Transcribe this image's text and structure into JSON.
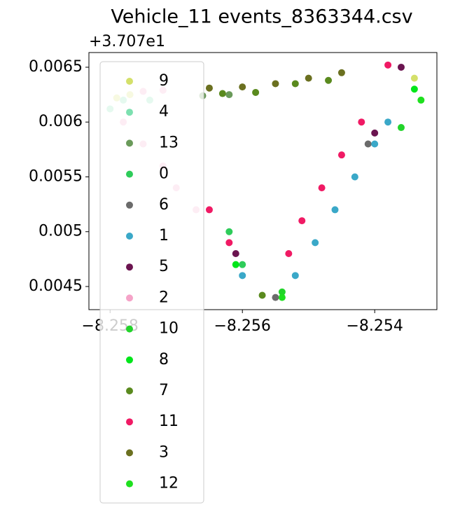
{
  "chart_data": {
    "type": "scatter",
    "title": "Vehicle_11 events_8363344.csv",
    "y_offset_text": "+3.707e1",
    "xlim": [
      -8.25832,
      -8.25306
    ],
    "ylim": [
      0.004289,
      0.006634
    ],
    "xticks": [
      {
        "value": -8.258,
        "label": "−8.258"
      },
      {
        "value": -8.256,
        "label": "−8.256"
      },
      {
        "value": -8.254,
        "label": "−8.254"
      }
    ],
    "yticks": [
      0.0045,
      0.005,
      0.0055,
      0.006,
      0.0065
    ],
    "legend": "upper left",
    "series": [
      {
        "name": "9",
        "color": "#d4e06a",
        "x": [
          -8.2579,
          -8.2577,
          -8.2534
        ],
        "y": [
          0.00622,
          0.00625,
          0.0064
        ]
      },
      {
        "name": "4",
        "color": "#7de0b0",
        "x": [
          -8.2578,
          -8.258,
          -8.2574
        ],
        "y": [
          0.0062,
          0.00612,
          0.0062
        ]
      },
      {
        "name": "13",
        "color": "#6a9a5a",
        "x": [
          -8.2566,
          -8.2562
        ],
        "y": [
          0.00624,
          0.00625
        ]
      },
      {
        "name": "0",
        "color": "#2ecc5a",
        "x": [
          -8.2562,
          -8.256
        ],
        "y": [
          0.005,
          0.0047
        ]
      },
      {
        "name": "6",
        "color": "#6b6b6b",
        "x": [
          -8.2555,
          -8.2541
        ],
        "y": [
          0.0044,
          0.0058
        ]
      },
      {
        "name": "1",
        "color": "#3aa8c8",
        "x": [
          -8.254,
          -8.2543,
          -8.2546,
          -8.2549,
          -8.2552,
          -8.2538,
          -8.256
        ],
        "y": [
          0.0058,
          0.0055,
          0.0052,
          0.0049,
          0.0046,
          0.006,
          0.0046
        ]
      },
      {
        "name": "5",
        "color": "#6b1450",
        "x": [
          -8.2561,
          -8.254,
          -8.2536
        ],
        "y": [
          0.0048,
          0.0059,
          0.0065
        ]
      },
      {
        "name": "2",
        "color": "#f5a3c8",
        "x": [
          -8.2578,
          -8.2575,
          -8.2572,
          -8.257,
          -8.2567,
          -8.2575,
          -8.2572
        ],
        "y": [
          0.006,
          0.0058,
          0.0056,
          0.0054,
          0.0052,
          0.00628,
          0.00629
        ]
      },
      {
        "name": "10",
        "color": "#22d42a",
        "x": [
          -8.2536,
          -8.2554
        ],
        "y": [
          0.00595,
          0.00445
        ]
      },
      {
        "name": "8",
        "color": "#00e61a",
        "x": [
          -8.2534,
          -8.2561
        ],
        "y": [
          0.0063,
          0.0047
        ]
      },
      {
        "name": "7",
        "color": "#5a8a1e",
        "x": [
          -8.2547,
          -8.2552,
          -8.2558,
          -8.2563,
          -8.2557
        ],
        "y": [
          0.00638,
          0.00635,
          0.00627,
          0.00626,
          0.00442
        ]
      },
      {
        "name": "11",
        "color": "#f01a64",
        "x": [
          -8.2542,
          -8.2545,
          -8.2548,
          -8.2551,
          -8.2553,
          -8.2565,
          -8.2562,
          -8.2538
        ],
        "y": [
          0.006,
          0.0057,
          0.0054,
          0.0051,
          0.0048,
          0.0052,
          0.0049,
          0.00652
        ]
      },
      {
        "name": "3",
        "color": "#6b7020",
        "x": [
          -8.2545,
          -8.255,
          -8.2555,
          -8.256,
          -8.2565
        ],
        "y": [
          0.00645,
          0.0064,
          0.00635,
          0.00632,
          0.00631
        ]
      },
      {
        "name": "12",
        "color": "#1ee01e",
        "x": [
          -8.2533,
          -8.2554
        ],
        "y": [
          0.0062,
          0.0044
        ]
      }
    ]
  }
}
